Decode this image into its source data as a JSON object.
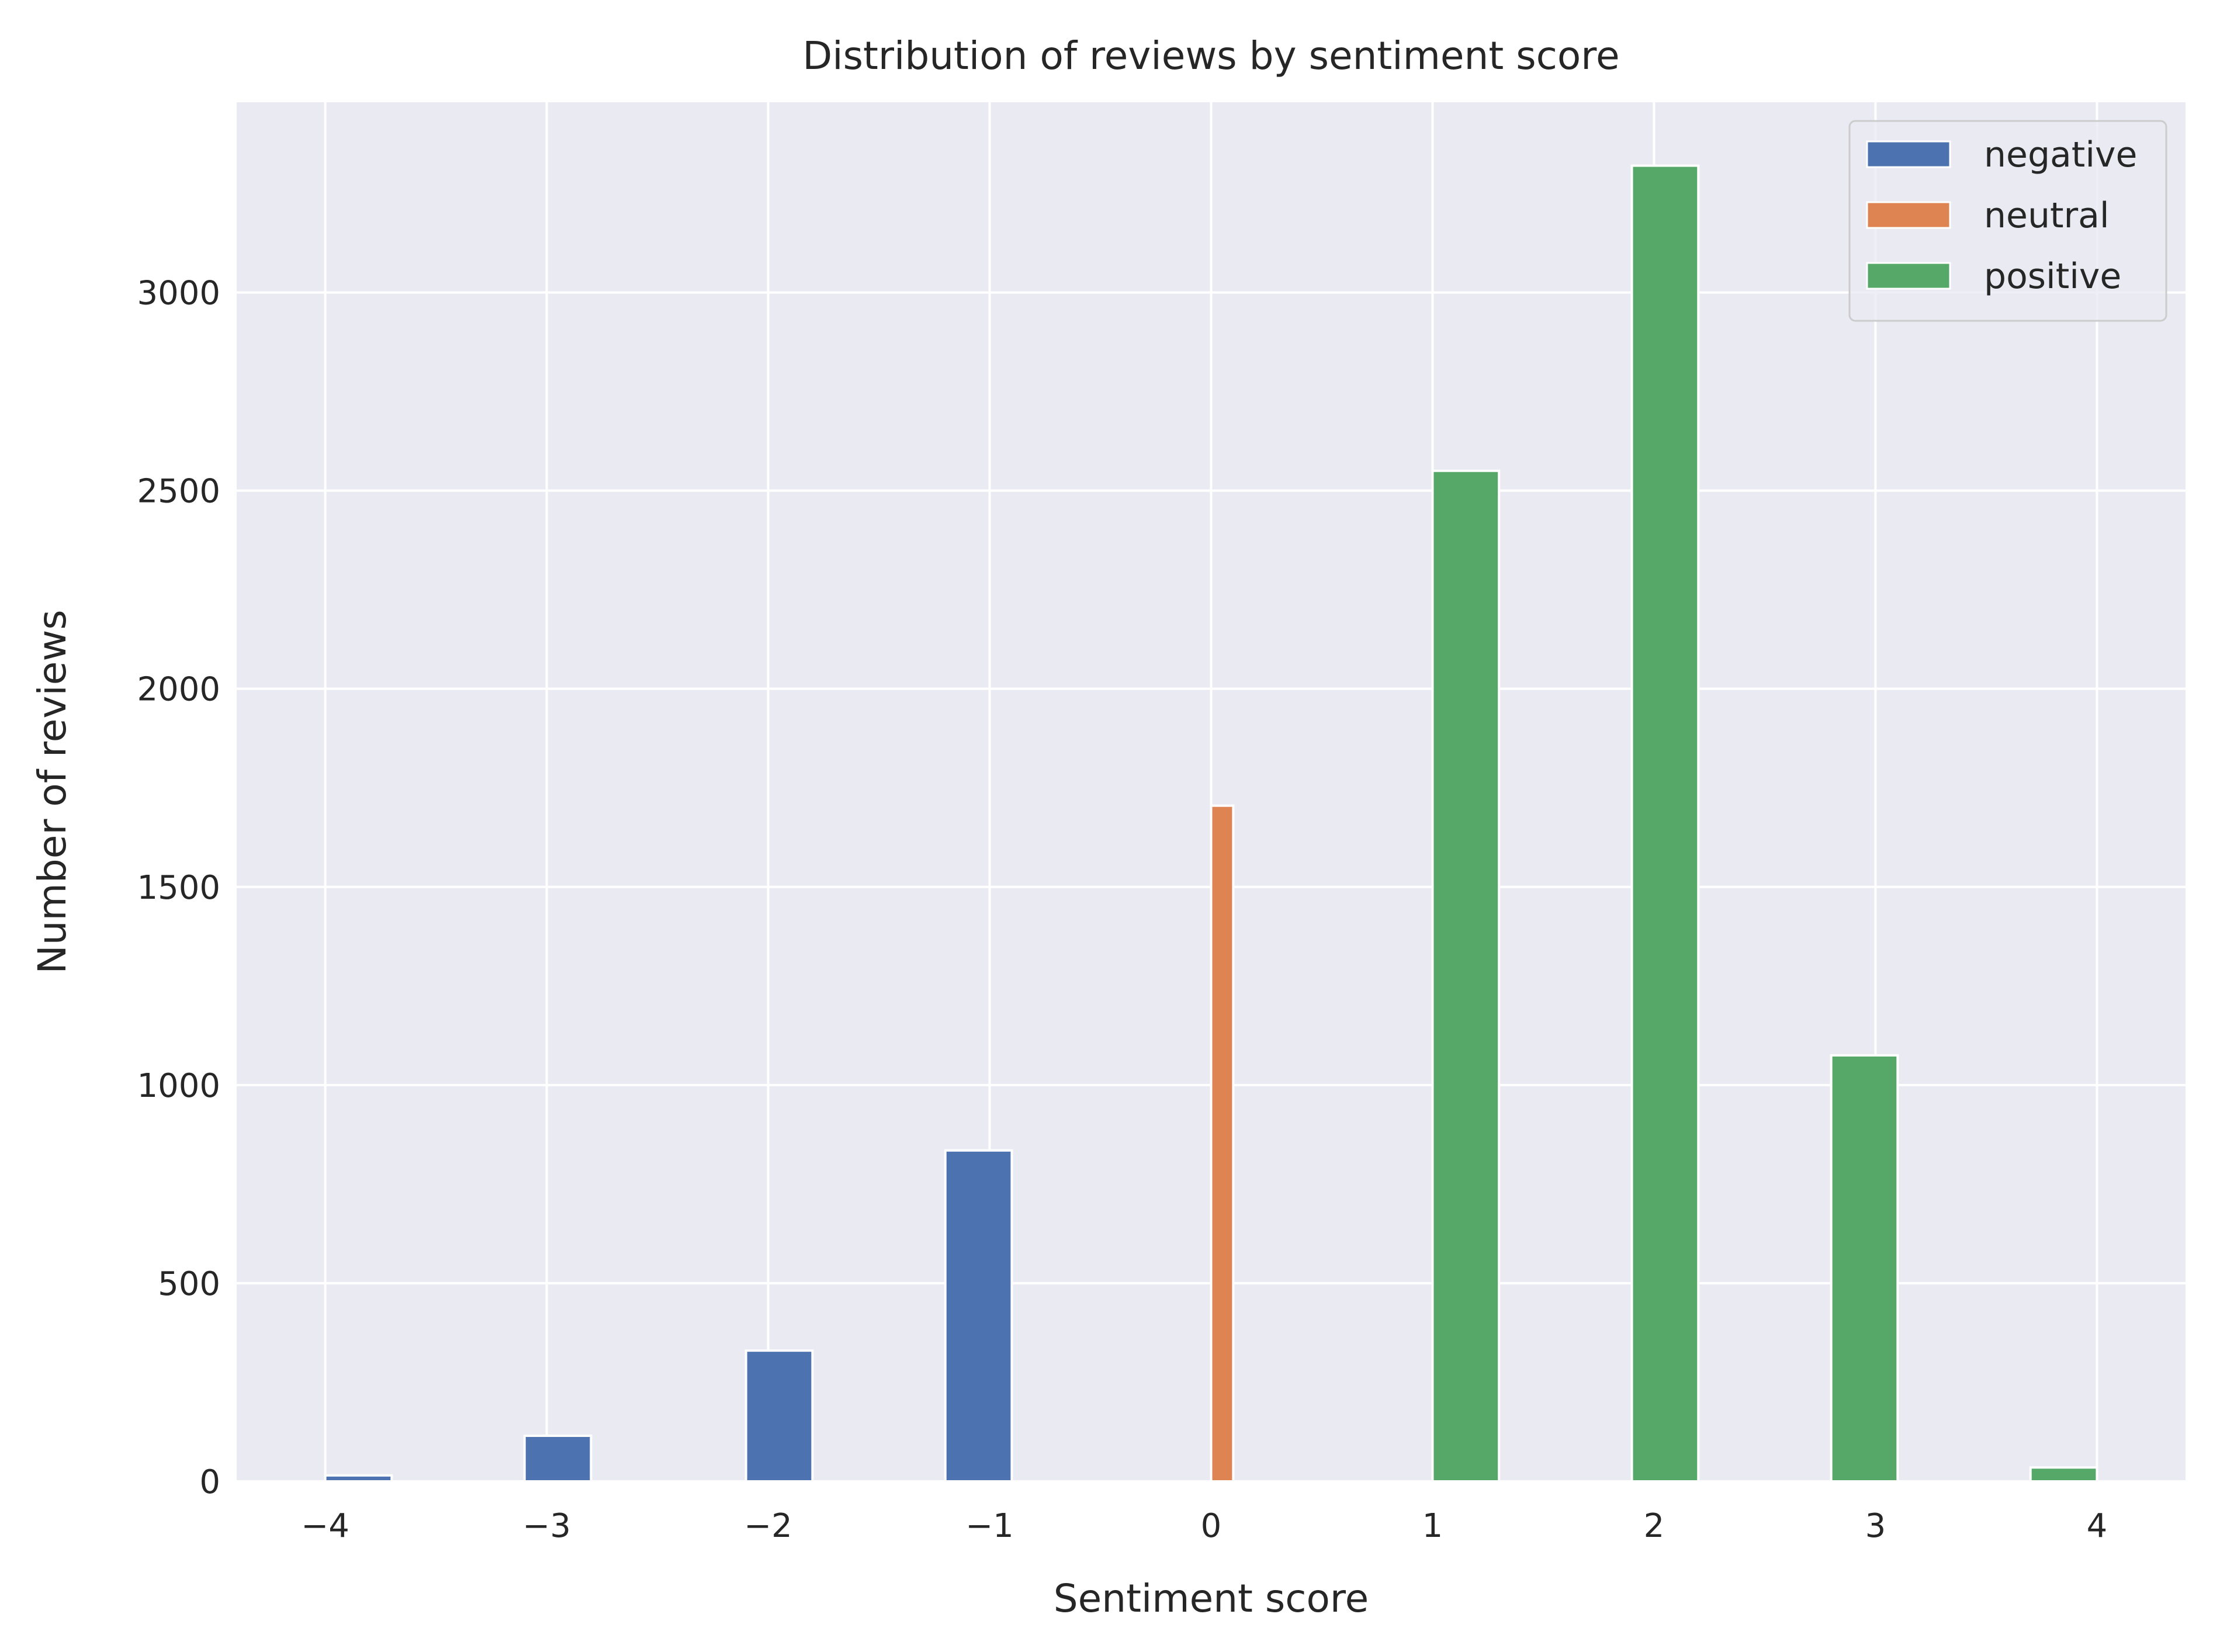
{
  "chart_data": {
    "type": "bar",
    "title": "Distribution of reviews by sentiment score",
    "xlabel": "Sentiment score",
    "ylabel": "Number of reviews",
    "xlim": [
      -4.4,
      4.4
    ],
    "ylim": [
      0,
      3480
    ],
    "xticks": [
      -4,
      -3,
      -2,
      -1,
      0,
      1,
      2,
      3,
      4
    ],
    "xtick_labels": [
      "−4",
      "−3",
      "−2",
      "−1",
      "0",
      "1",
      "2",
      "3",
      "4"
    ],
    "yticks": [
      0,
      500,
      1000,
      1500,
      2000,
      2500,
      3000
    ],
    "ytick_labels": [
      "0",
      "500",
      "1000",
      "1500",
      "2000",
      "2500",
      "3000"
    ],
    "grid": true,
    "legend": {
      "position": "top-right"
    },
    "series": [
      {
        "name": "negative",
        "color": "#4c72b0",
        "bars": [
          {
            "x_start": -4.0,
            "x_end": -3.7,
            "value": 15
          },
          {
            "x_start": -3.1,
            "x_end": -2.8,
            "value": 115
          },
          {
            "x_start": -2.1,
            "x_end": -1.8,
            "value": 330
          },
          {
            "x_start": -1.2,
            "x_end": -0.9,
            "value": 835
          }
        ]
      },
      {
        "name": "neutral",
        "color": "#dd8452",
        "bars": [
          {
            "x_start": 0.0,
            "x_end": 0.1,
            "value": 1705
          }
        ]
      },
      {
        "name": "positive",
        "color": "#55a868",
        "bars": [
          {
            "x_start": 1.0,
            "x_end": 1.3,
            "value": 2550
          },
          {
            "x_start": 1.9,
            "x_end": 2.2,
            "value": 3320
          },
          {
            "x_start": 2.8,
            "x_end": 3.1,
            "value": 1075
          },
          {
            "x_start": 3.7,
            "x_end": 4.0,
            "value": 35
          }
        ]
      }
    ]
  }
}
